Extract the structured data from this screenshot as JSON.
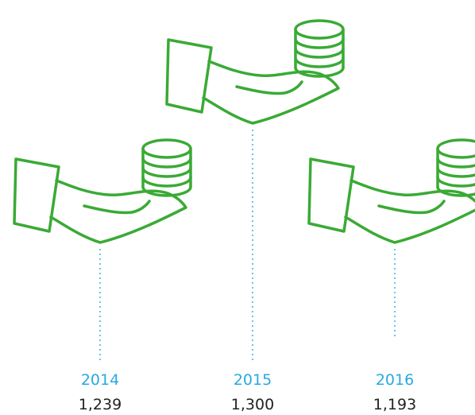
{
  "items": [
    {
      "year": "2014",
      "value": "1,239"
    },
    {
      "year": "2015",
      "value": "1,300"
    },
    {
      "year": "2016",
      "value": "1,193"
    }
  ]
}
